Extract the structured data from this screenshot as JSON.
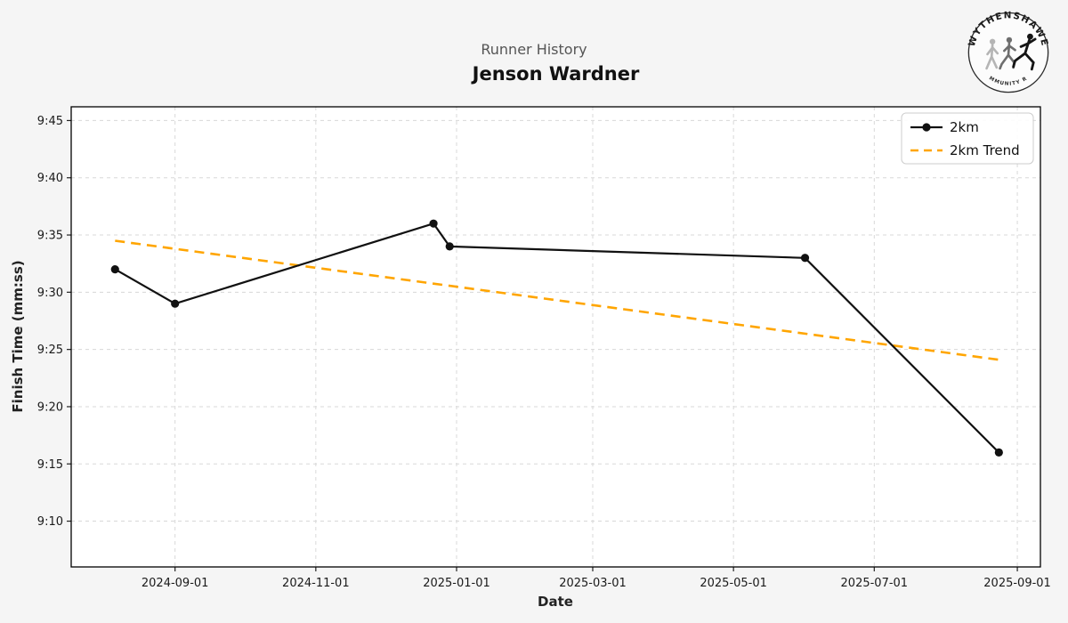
{
  "header": {
    "subtitle": "Runner History",
    "title": "Jenson Wardner"
  },
  "logo": {
    "arc_top": "WYTHENSHAWE",
    "arc_bottom": "COMMUNITY RUN"
  },
  "chart_data": {
    "type": "line",
    "title": "Runner History",
    "runner": "Jenson Wardner",
    "xlabel": "Date",
    "ylabel": "Finish Time (mm:ss)",
    "grid": true,
    "legend_position": "upper right",
    "colors": {
      "grid": "#d8d8d8",
      "plot_background": "#ffffff",
      "figure_background": "#f5f5f5"
    },
    "xlim": [
      "2024-07-18",
      "2025-09-11"
    ],
    "ylim_seconds": [
      546,
      586.2
    ],
    "x_ticks": [
      "2024-09-01",
      "2024-11-01",
      "2025-01-01",
      "2025-03-01",
      "2025-05-01",
      "2025-07-01",
      "2025-09-01"
    ],
    "y_ticks": [
      {
        "label": "9:45",
        "seconds": 585
      },
      {
        "label": "9:40",
        "seconds": 580
      },
      {
        "label": "9:35",
        "seconds": 575
      },
      {
        "label": "9:30",
        "seconds": 570
      },
      {
        "label": "9:25",
        "seconds": 565
      },
      {
        "label": "9:20",
        "seconds": 560
      },
      {
        "label": "9:15",
        "seconds": 555
      },
      {
        "label": "9:10",
        "seconds": 550
      }
    ],
    "series": [
      {
        "name": "2km",
        "color": "#111111",
        "line": "solid",
        "marker": "circle",
        "points": [
          {
            "date": "2024-08-06",
            "time": "9:32",
            "seconds": 572
          },
          {
            "date": "2024-09-01",
            "time": "9:29",
            "seconds": 569
          },
          {
            "date": "2024-12-22",
            "time": "9:36",
            "seconds": 576
          },
          {
            "date": "2024-12-29",
            "time": "9:34",
            "seconds": 574
          },
          {
            "date": "2025-06-01",
            "time": "9:33",
            "seconds": 573
          },
          {
            "date": "2025-08-24",
            "time": "9:16",
            "seconds": 556
          }
        ]
      },
      {
        "name": "2km Trend",
        "color": "#FFA500",
        "line": "dashed",
        "marker": "none",
        "points": [
          {
            "date": "2024-08-06",
            "seconds": 574.5
          },
          {
            "date": "2025-08-24",
            "seconds": 564.1
          }
        ]
      }
    ]
  }
}
